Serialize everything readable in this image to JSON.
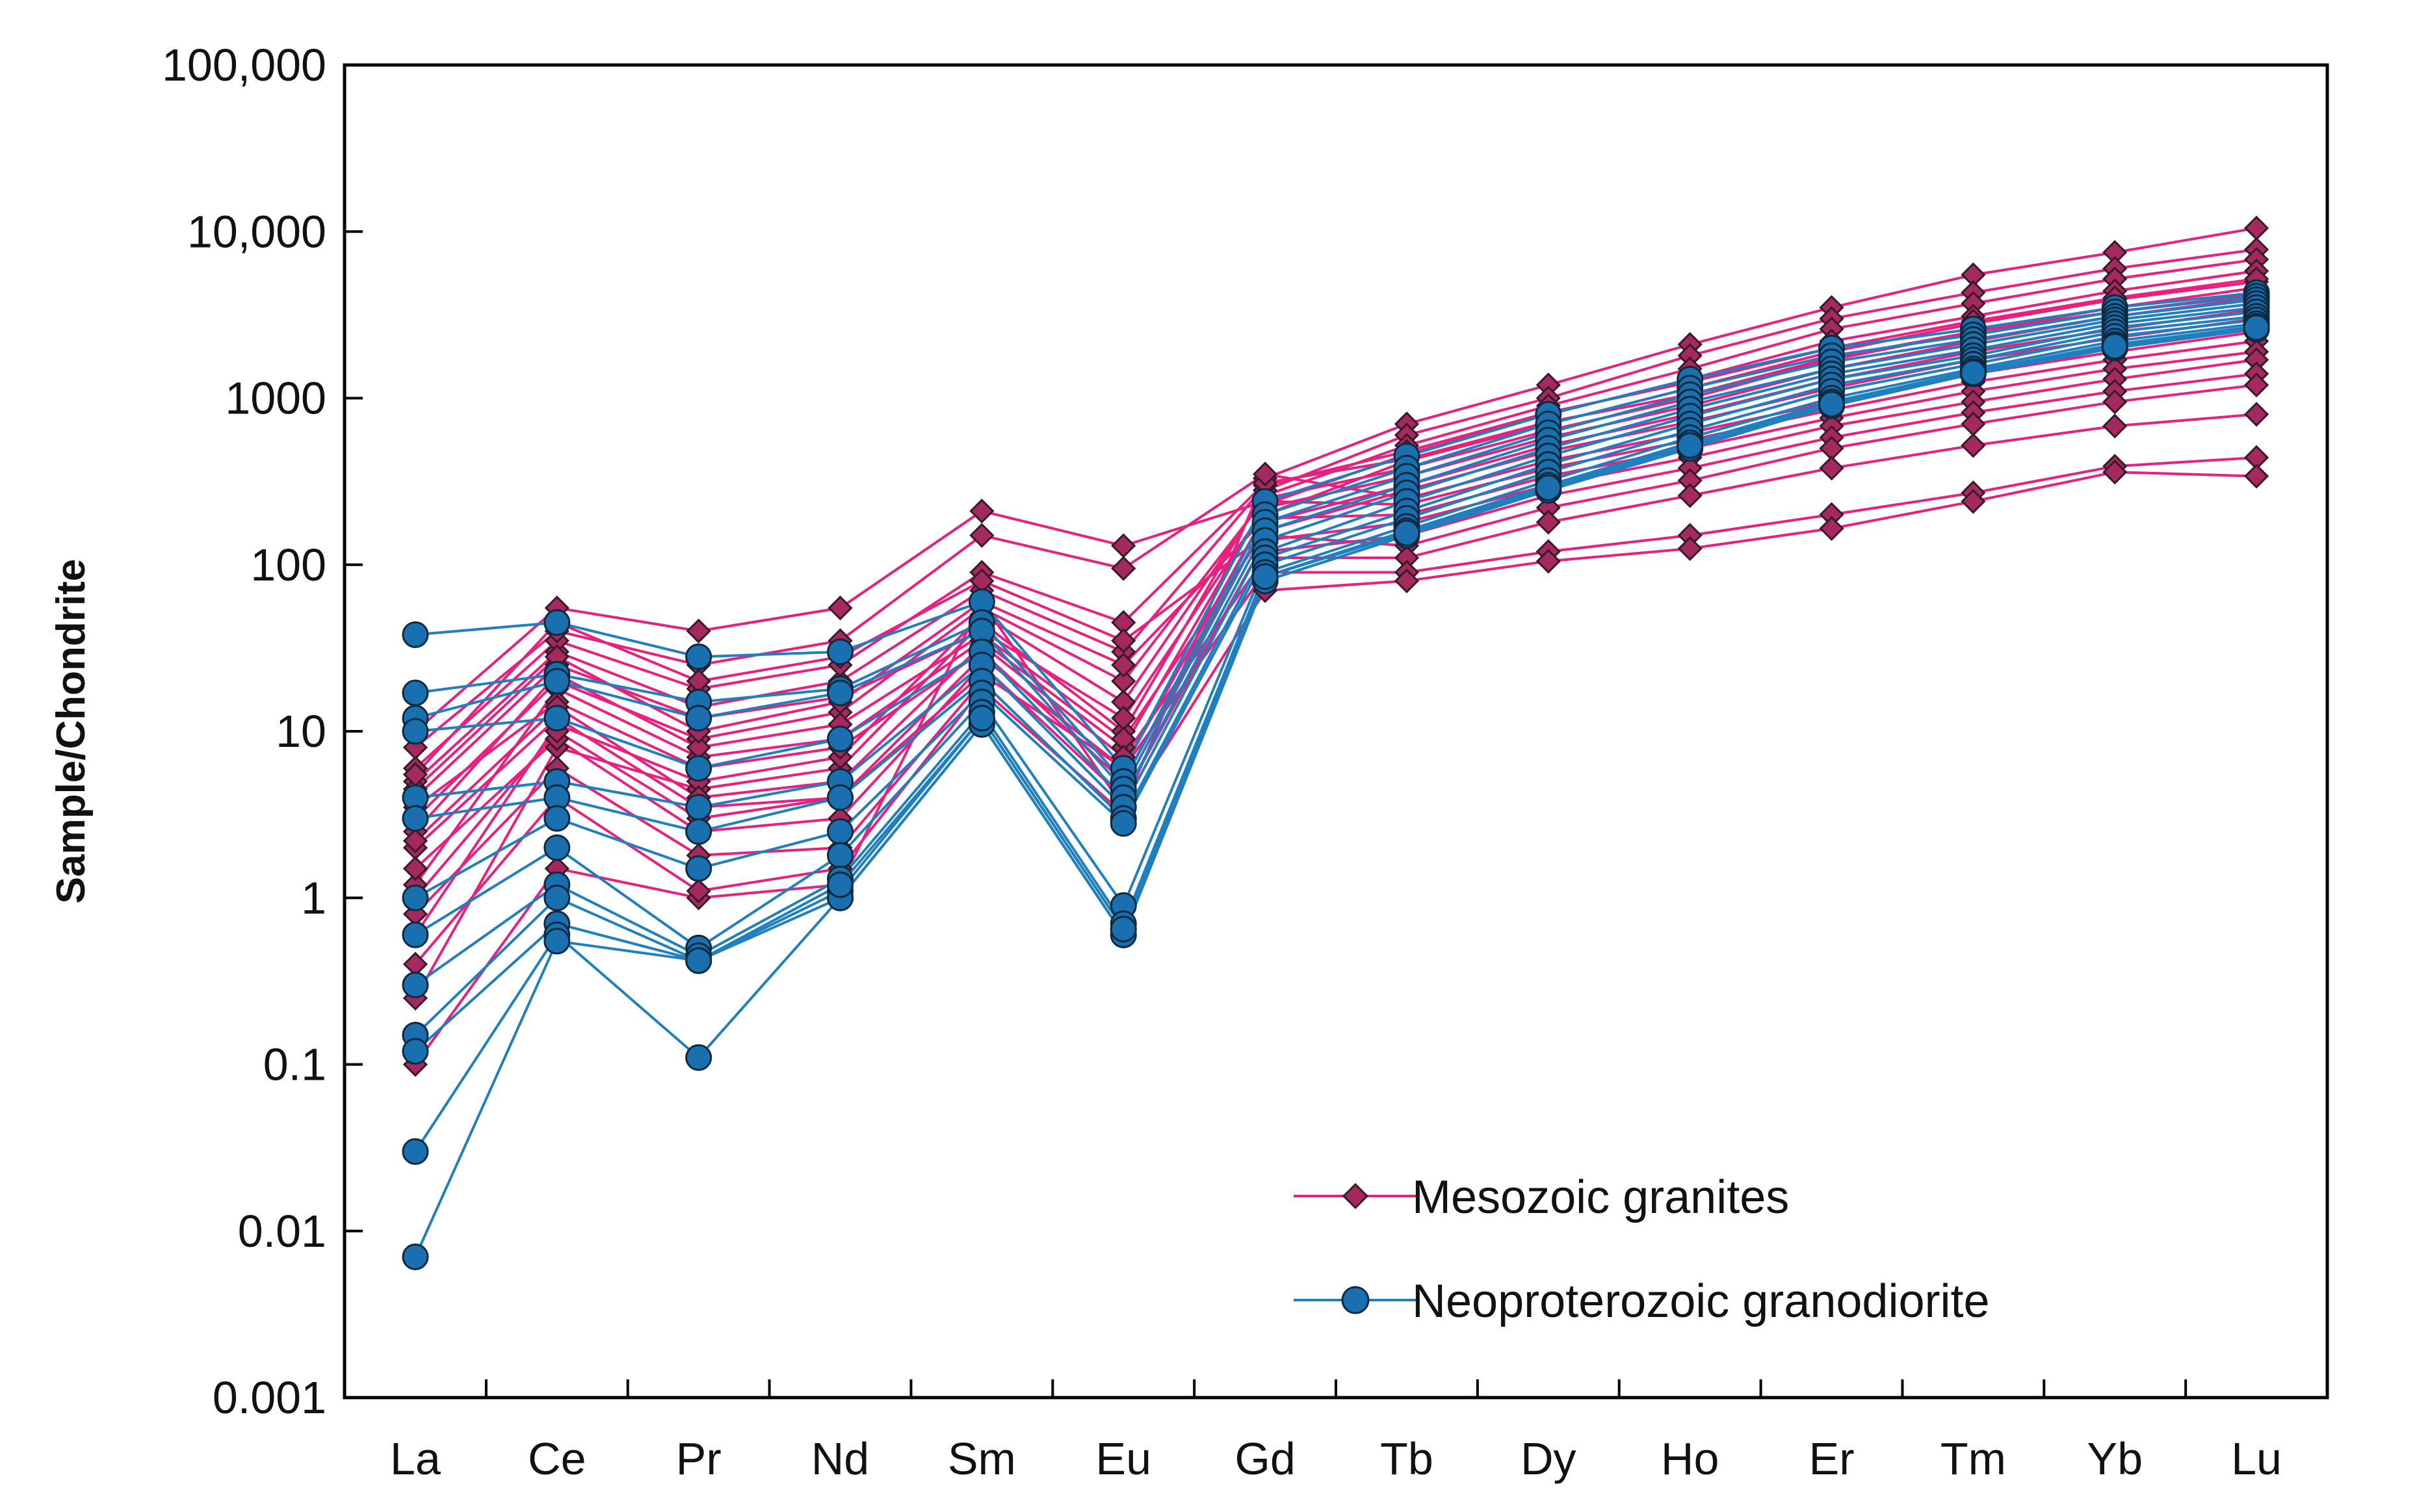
{
  "chart_data": {
    "type": "line",
    "title": "",
    "xlabel": "",
    "ylabel": "Sample/Chondrite",
    "yscale": "log",
    "ylim": [
      0.001,
      100000
    ],
    "ytick_values": [
      0.001,
      0.01,
      0.1,
      1,
      10,
      100,
      1000,
      10000,
      100000
    ],
    "ytick_labels": [
      "0.001",
      "0.01",
      "0.1",
      "1",
      "10",
      "100",
      "1000",
      "10,000",
      "100,000"
    ],
    "categories": [
      "La",
      "Ce",
      "Pr",
      "Nd",
      "Sm",
      "Eu",
      "Gd",
      "Tb",
      "Dy",
      "Ho",
      "Er",
      "Tm",
      "Yb",
      "Lu"
    ],
    "legend_position": "bottom-right",
    "groups": [
      {
        "name": "Mesozoic granites",
        "color": "#e8207e",
        "marker": "diamond",
        "marker_color": "#a3295f",
        "series": [
          [
            0.1,
            1.5,
            1.0,
            1.2,
            60,
            3.5,
            330,
            700,
            1200,
            2100,
            3500,
            5500,
            7500,
            10500
          ],
          [
            0.25,
            8,
            4.5,
            6,
            45,
            10,
            280,
            600,
            1000,
            1800,
            3000,
            4300,
            6000,
            7800
          ],
          [
            0.6,
            11,
            5,
            7,
            50,
            15,
            260,
            520,
            900,
            1500,
            2600,
            3700,
            5200,
            6800
          ],
          [
            1.2,
            18,
            7,
            9,
            35,
            8,
            230,
            460,
            800,
            1300,
            2200,
            3100,
            4400,
            5800
          ],
          [
            2,
            12,
            3.5,
            4,
            28,
            6,
            200,
            420,
            700,
            1150,
            1900,
            2800,
            3900,
            5000
          ],
          [
            3,
            20,
            9,
            13,
            55,
            20,
            250,
            380,
            640,
            1000,
            1700,
            2500,
            3500,
            4600
          ],
          [
            4,
            25,
            12,
            16,
            40,
            12,
            220,
            340,
            580,
            900,
            1500,
            2200,
            3100,
            4000
          ],
          [
            5,
            30,
            14,
            20,
            70,
            30,
            300,
            480,
            820,
            1250,
            2000,
            2900,
            4000,
            5200
          ],
          [
            6,
            35,
            18,
            25,
            90,
            45,
            310,
            430,
            720,
            1050,
            1750,
            2500,
            3300,
            4200
          ],
          [
            3.5,
            15,
            6,
            8,
            30,
            5,
            180,
            300,
            520,
            800,
            1300,
            1900,
            2600,
            3400
          ],
          [
            2.5,
            22,
            8,
            11,
            38,
            9,
            160,
            280,
            480,
            720,
            1150,
            1700,
            2300,
            3000
          ],
          [
            8,
            40,
            25,
            35,
            150,
            95,
            350,
            250,
            420,
            620,
            950,
            1400,
            1900,
            2500
          ],
          [
            10,
            55,
            40,
            55,
            210,
            130,
            240,
            230,
            380,
            560,
            850,
            1250,
            1700,
            2200
          ],
          [
            4.5,
            28,
            10,
            15,
            60,
            25,
            190,
            200,
            340,
            500,
            760,
            1100,
            1500,
            1900
          ],
          [
            1.5,
            9,
            2.5,
            3,
            25,
            4,
            140,
            180,
            300,
            440,
            680,
            950,
            1300,
            1700
          ],
          [
            0.8,
            6,
            1.8,
            2,
            20,
            3,
            120,
            150,
            260,
            380,
            580,
            820,
            1100,
            1400
          ],
          [
            5.5,
            45,
            20,
            28,
            80,
            35,
            150,
            130,
            220,
            320,
            500,
            700,
            950,
            1200
          ],
          [
            2.2,
            14,
            4,
            5,
            33,
            7,
            110,
            110,
            180,
            260,
            380,
            520,
            680,
            800
          ],
          [
            1,
            10,
            3,
            4,
            22,
            6,
            90,
            90,
            120,
            150,
            200,
            270,
            390,
            440
          ],
          [
            0.4,
            4,
            1.1,
            1.5,
            18,
            3.2,
            70,
            80,
            105,
            125,
            165,
            240,
            360,
            340
          ]
        ]
      },
      {
        "name": "Neoproterozoic granodiorite",
        "color": "#1f7fbf",
        "marker": "circle",
        "marker_color": "#1a6fae",
        "series": [
          [
            38,
            45,
            28,
            30,
            60,
            6,
            240,
            450,
            800,
            1300,
            2000,
            2600,
            3500,
            4300
          ],
          [
            17,
            22,
            15,
            18,
            45,
            5,
            200,
            380,
            700,
            1150,
            1800,
            2400,
            3300,
            4100
          ],
          [
            12,
            20,
            12,
            17,
            40,
            4.5,
            180,
            340,
            620,
            1050,
            1650,
            2250,
            3100,
            3900
          ],
          [
            10,
            12,
            6,
            9,
            30,
            4,
            160,
            300,
            560,
            950,
            1500,
            2100,
            2950,
            3700
          ],
          [
            4,
            5,
            3.5,
            5,
            25,
            3.5,
            140,
            270,
            500,
            860,
            1400,
            1950,
            2800,
            3500
          ],
          [
            3,
            4,
            2.5,
            4,
            20,
            3,
            120,
            240,
            450,
            780,
            1300,
            1800,
            2650,
            3300
          ],
          [
            1,
            3,
            1.5,
            2.5,
            17,
            2.8,
            110,
            210,
            400,
            700,
            1200,
            1700,
            2500,
            3100
          ],
          [
            0.6,
            2,
            0.5,
            1.8,
            15,
            0.9,
            100,
            190,
            360,
            640,
            1100,
            1600,
            2350,
            2950
          ],
          [
            0.3,
            1.2,
            0.45,
            1.3,
            13,
            0.7,
            90,
            170,
            320,
            580,
            1000,
            1500,
            2200,
            2800
          ],
          [
            0.15,
            1,
            0.42,
            1.1,
            12,
            0.65,
            85,
            160,
            300,
            540,
            950,
            1450,
            2100,
            2700
          ],
          [
            0.12,
            0.7,
            0.42,
            1,
            11,
            0.6,
            80,
            150,
            280,
            500,
            900,
            1400,
            2000,
            2600
          ],
          [
            0.03,
            0.6,
            0.11,
            1,
            11,
            0.6,
            80,
            150,
            280,
            500,
            900,
            1400,
            2000,
            2600
          ],
          [
            0.007,
            0.55,
            0.42,
            1.2,
            12,
            0.65,
            85,
            155,
            290,
            520,
            920,
            1420,
            2050,
            2650
          ]
        ]
      }
    ]
  }
}
